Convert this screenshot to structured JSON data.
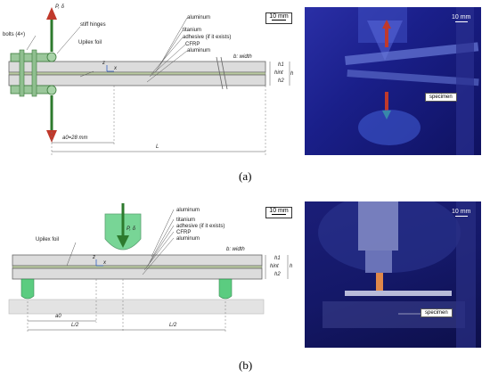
{
  "panel_a": {
    "labels": {
      "load": "P, δ",
      "bolts": "bolts (4×)",
      "stiff_hinges": "stiff hinges",
      "upilex": "Upilex foil",
      "aluminum_top": "aluminum",
      "titanium": "titanium",
      "adhesive": "adhesive (if it exists)",
      "cfrp": "CFRP",
      "aluminum_bottom": "aluminum",
      "width": "b: width",
      "h1": "h1",
      "hint": "hint",
      "h2": "h2",
      "h": "h",
      "a0": "a0=28 mm",
      "L": "L",
      "z": "z",
      "x": "x"
    },
    "scale": "10 mm",
    "photo_scale": "10 mm",
    "specimen": "specimen",
    "caption": "(a)"
  },
  "panel_b": {
    "labels": {
      "load": "P, δ",
      "upilex": "Upilex foil",
      "aluminum_top": "aluminum",
      "titanium": "titanium",
      "adhesive": "adhesive (if it exists)",
      "cfrp": "CFRP",
      "aluminum_bottom": "aluminum",
      "width": "b: width",
      "h1": "h1",
      "hint": "hint",
      "h2": "h2",
      "h": "h",
      "a0": "a0",
      "L2a": "L/2",
      "L2b": "L/2",
      "z": "z",
      "x": "x"
    },
    "scale": "10 mm",
    "photo_scale": "10 mm",
    "specimen": "specimen",
    "caption": "(b)"
  },
  "colors": {
    "green": "#1a9a4a",
    "red": "#c0392b",
    "beam": "#d8d8d8",
    "photo_bg": "#1a1f8a"
  }
}
